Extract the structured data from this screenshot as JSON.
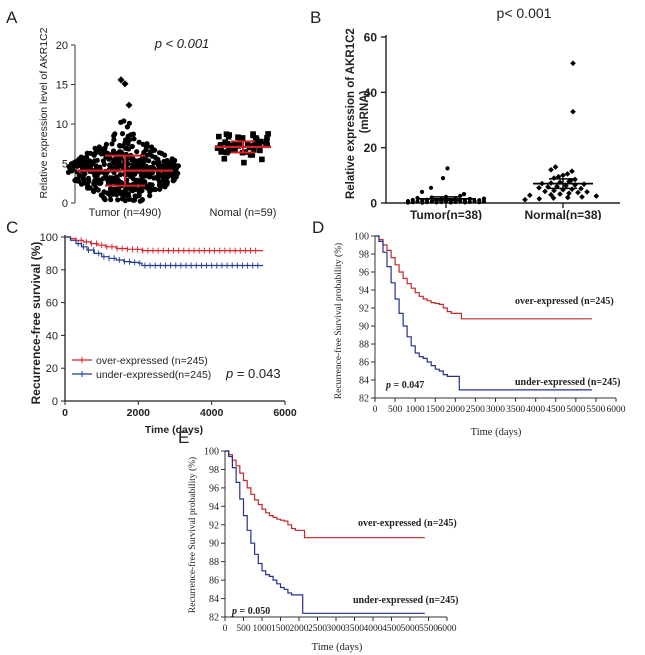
{
  "chart_data": [
    {
      "panel": "A",
      "type": "scatter",
      "annotation": "p < 0.001",
      "ylabel": "Relative expression level of AKR1C2",
      "xlabel": "",
      "categories": [
        "Tumor (n=490)",
        "Nomal (n=59)"
      ],
      "yticks": [
        0,
        5,
        10,
        15,
        20
      ],
      "ylim": [
        0,
        20
      ],
      "grid": false,
      "summary": [
        {
          "category": "Tumor (n=490)",
          "mean": 4.1,
          "sd_low": 2.2,
          "sd_high": 6.0
        },
        {
          "category": "Nomal (n=59)",
          "mean": 7.1,
          "sd_low": 6.4,
          "sd_high": 7.8
        }
      ],
      "highlight_points": [
        {
          "category": "Tumor (n=490)",
          "y": 15.5
        },
        {
          "category": "Tumor (n=490)",
          "y": 15.0
        },
        {
          "category": "Tumor (n=490)",
          "y": 12.3
        }
      ],
      "colors": {
        "points": "#000000",
        "errorbar": "#d91f26"
      }
    },
    {
      "panel": "B",
      "type": "scatter",
      "annotation": "p< 0.001",
      "ylabel": "Relative expression of AKR1C2 (mRNA)",
      "xlabel": "",
      "categories": [
        "Tumor(n=38)",
        "Normal(n=38)"
      ],
      "yticks": [
        0,
        20,
        40,
        60
      ],
      "ylim": [
        0,
        60
      ],
      "grid": false,
      "summary": [
        {
          "category": "Tumor(n=38)",
          "mean": 1.5,
          "sem_low": 0.9,
          "sem_high": 2.2
        },
        {
          "category": "Normal(n=38)",
          "mean": 7.0,
          "sem_low": 5.3,
          "sem_high": 8.7
        }
      ],
      "points": [
        {
          "category": "Tumor(n=38)",
          "values": [
            12.5,
            9.0,
            5.5,
            4.0,
            3.2,
            2.6,
            2.2,
            2.0,
            1.8,
            1.6,
            1.5,
            1.4,
            1.3,
            1.2,
            1.1,
            1.0,
            0.9,
            0.9,
            0.8,
            0.8,
            0.7,
            0.7,
            0.6,
            0.6,
            0.5,
            0.5,
            0.5,
            0.4,
            0.4,
            0.4,
            0.3,
            0.3,
            0.3,
            0.2,
            0.2,
            0.2,
            0.1,
            0.1
          ]
        },
        {
          "category": "Normal(n=38)",
          "values": [
            50.5,
            33.0,
            13.0,
            12.0,
            11.5,
            10.5,
            10.0,
            9.5,
            9.0,
            8.5,
            8.0,
            7.8,
            7.5,
            7.2,
            7.0,
            6.8,
            6.5,
            6.2,
            6.0,
            5.8,
            5.5,
            5.2,
            5.0,
            4.8,
            4.5,
            4.2,
            4.0,
            3.8,
            3.5,
            3.2,
            3.0,
            2.8,
            2.5,
            2.2,
            2.0,
            1.8,
            1.5,
            1.2
          ]
        }
      ],
      "colors": {
        "points": "#000000",
        "errorbar": "#000000"
      }
    },
    {
      "panel": "C",
      "type": "line",
      "ylabel": "Recurrence-free survival (%)",
      "xlabel": "Time (days)",
      "annotation": "p = 0.043",
      "xticks": [
        0,
        2000,
        4000,
        6000
      ],
      "yticks": [
        0,
        20,
        40,
        60,
        80,
        100
      ],
      "xlim": [
        0,
        6000
      ],
      "ylim": [
        0,
        100
      ],
      "legend": "bottom-left",
      "series": [
        {
          "name": "over-expressed (n=245)",
          "color": "#d91f26",
          "x": [
            0,
            150,
            300,
            500,
            700,
            900,
            1100,
            1400,
            1700,
            2100,
            5400
          ],
          "y": [
            100,
            99,
            98,
            97,
            96,
            95,
            94,
            93,
            92.5,
            91.7,
            91.7
          ]
        },
        {
          "name": "under-expressed(n=245)",
          "color": "#1f3a93",
          "x": [
            0,
            150,
            300,
            450,
            600,
            800,
            1000,
            1200,
            1400,
            1600,
            1800,
            2000,
            2100,
            5400
          ],
          "y": [
            100,
            98,
            96,
            94,
            92,
            90,
            88,
            87,
            86,
            85,
            84.5,
            84,
            82.6,
            82.6
          ]
        }
      ]
    },
    {
      "panel": "D",
      "type": "line",
      "ylabel": "Recurrence-free Survival probability (%)",
      "xlabel": "Time (days)",
      "annotation": "p = 0.047",
      "xticks": [
        0,
        500,
        1000,
        1500,
        2000,
        2500,
        3000,
        3500,
        4000,
        4500,
        5000,
        5500,
        6000
      ],
      "yticks": [
        82,
        84,
        86,
        88,
        90,
        92,
        94,
        96,
        98,
        100
      ],
      "xlim": [
        0,
        6000
      ],
      "ylim": [
        82,
        100
      ],
      "series": [
        {
          "name": "over-expressed (n=245)",
          "color": "#c0282d",
          "x": [
            0,
            100,
            200,
            300,
            400,
            500,
            600,
            700,
            800,
            900,
            1000,
            1100,
            1200,
            1300,
            1400,
            1500,
            1600,
            1700,
            1800,
            1900,
            2000,
            2100,
            2150,
            5400
          ],
          "y": [
            100,
            99.6,
            99.0,
            98.4,
            97.6,
            96.8,
            96.0,
            95.3,
            94.7,
            94.2,
            93.7,
            93.3,
            93.0,
            92.8,
            92.6,
            92.5,
            92.4,
            92.0,
            91.6,
            91.4,
            91.4,
            91.4,
            90.8,
            90.8
          ]
        },
        {
          "name": "under-expressed (n=245)",
          "color": "#25308f",
          "x": [
            0,
            100,
            200,
            300,
            400,
            500,
            600,
            700,
            800,
            900,
            1000,
            1100,
            1200,
            1300,
            1400,
            1500,
            1600,
            1700,
            1800,
            1900,
            2000,
            2100,
            5400
          ],
          "y": [
            100,
            99.4,
            98.2,
            96.6,
            94.8,
            93.0,
            91.4,
            90.0,
            88.8,
            87.8,
            87.0,
            86.6,
            86.4,
            86.0,
            85.6,
            85.2,
            85.0,
            84.6,
            84.4,
            84.4,
            84.4,
            82.9,
            82.9
          ]
        }
      ]
    },
    {
      "panel": "E",
      "type": "line",
      "ylabel": "Recurrence-free Survival probability (%)",
      "xlabel": "Time (days)",
      "annotation": "p = 0.050",
      "xticks": [
        0,
        500,
        1000,
        1500,
        2000,
        2500,
        3000,
        3500,
        4000,
        4500,
        5000,
        5500,
        6000
      ],
      "yticks": [
        82,
        84,
        86,
        88,
        90,
        92,
        94,
        96,
        98,
        100
      ],
      "xlim": [
        0,
        6000
      ],
      "ylim": [
        82,
        100
      ],
      "series": [
        {
          "name": "over-expressed (n=245)",
          "color": "#c0282d",
          "x": [
            0,
            100,
            200,
            300,
            400,
            500,
            600,
            700,
            800,
            900,
            1000,
            1100,
            1200,
            1300,
            1400,
            1500,
            1600,
            1700,
            1800,
            1900,
            2000,
            2100,
            2150,
            5400
          ],
          "y": [
            100,
            99.6,
            99.0,
            98.4,
            97.6,
            96.8,
            96.0,
            95.3,
            94.7,
            94.2,
            93.7,
            93.3,
            93.0,
            92.8,
            92.6,
            92.5,
            92.4,
            92.0,
            91.6,
            91.4,
            91.4,
            91.4,
            90.6,
            90.6
          ]
        },
        {
          "name": "under-expressed (n=245)",
          "color": "#25308f",
          "x": [
            0,
            100,
            200,
            300,
            400,
            500,
            600,
            700,
            800,
            900,
            1000,
            1100,
            1200,
            1300,
            1400,
            1500,
            1600,
            1700,
            1800,
            1900,
            2000,
            2100,
            5400
          ],
          "y": [
            100,
            99.4,
            98.2,
            96.6,
            94.8,
            93.0,
            91.4,
            90.0,
            88.8,
            87.8,
            87.0,
            86.6,
            86.4,
            86.0,
            85.6,
            85.2,
            85.0,
            84.6,
            84.4,
            84.4,
            84.4,
            82.4,
            82.4
          ]
        }
      ]
    }
  ],
  "panels": {
    "a": "A",
    "b": "B",
    "c": "C",
    "d": "D",
    "e": "E"
  }
}
